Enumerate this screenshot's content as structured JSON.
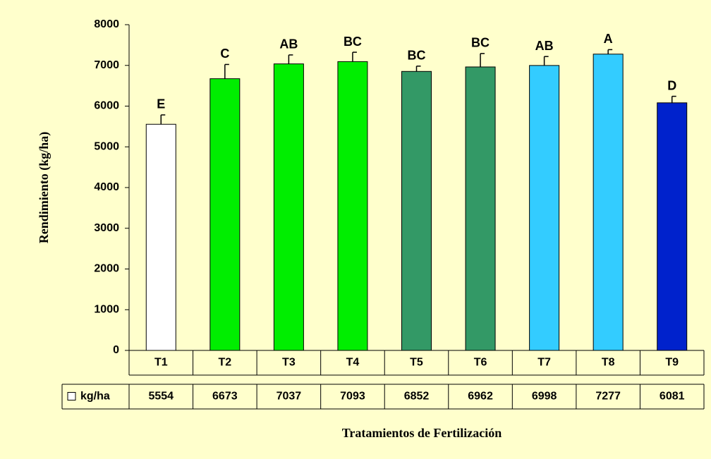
{
  "chart_data": {
    "type": "bar",
    "y_label": "Rendimiento (kg/ha)",
    "x_label": "Tratamientos de Fertilización",
    "categories": [
      "T1",
      "T2",
      "T3",
      "T4",
      "T5",
      "T6",
      "T7",
      "T8",
      "T9"
    ],
    "series": [
      {
        "name": "kg/ha",
        "colors": [
          "#ffffff",
          "#00ee00",
          "#00ee00",
          "#00ee00",
          "#339966",
          "#339966",
          "#33ccff",
          "#33ccff",
          "#0022cc"
        ],
        "values": [
          5554,
          6673,
          7037,
          7093,
          6852,
          6962,
          6998,
          7277,
          6081
        ],
        "errors": [
          230,
          350,
          220,
          230,
          130,
          330,
          220,
          110,
          160
        ],
        "labels": [
          "E",
          "C",
          "AB",
          "BC",
          "BC",
          "BC",
          "AB",
          "A",
          "D"
        ]
      }
    ],
    "ylim": [
      0,
      8000
    ],
    "yticks": [
      0,
      1000,
      2000,
      3000,
      4000,
      5000,
      6000,
      7000,
      8000
    ]
  }
}
